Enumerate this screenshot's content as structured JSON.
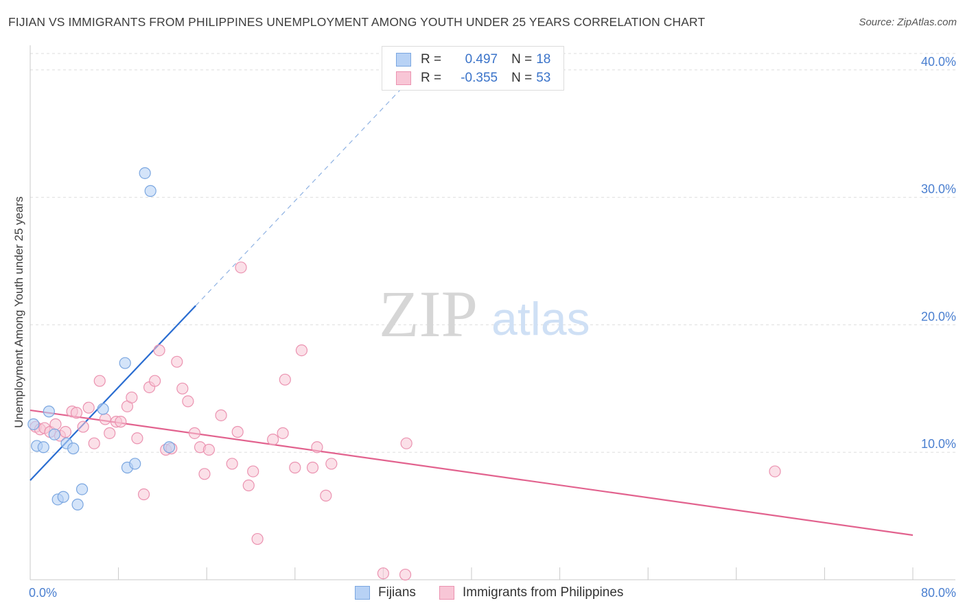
{
  "title": "FIJIAN VS IMMIGRANTS FROM PHILIPPINES UNEMPLOYMENT AMONG YOUTH UNDER 25 YEARS CORRELATION CHART",
  "source": "Source: ZipAtlas.com",
  "watermark": {
    "zip": "ZIP",
    "atlas": "atlas"
  },
  "legend": {
    "rows": [
      {
        "r_label": "R =",
        "r_value": "0.497",
        "n_label": "N =",
        "n_value": "18"
      },
      {
        "r_label": "R =",
        "r_value": "-0.355",
        "n_label": "N =",
        "n_value": "53"
      }
    ]
  },
  "colors": {
    "fijians_fill": "#b8d2f5",
    "fijians_stroke": "#7aa6e0",
    "fijians_line": "#2a6dd1",
    "philippines_fill": "#f8c6d6",
    "philippines_stroke": "#eb92b0",
    "philippines_line": "#e2628e",
    "grid": "#dddddd",
    "tick_text": "#4a7fd0"
  },
  "chart_data": {
    "type": "scatter",
    "title": "FIJIAN VS IMMIGRANTS FROM PHILIPPINES UNEMPLOYMENT AMONG YOUTH UNDER 25 YEARS CORRELATION CHART",
    "xlabel": "",
    "ylabel": "Unemployment Among Youth under 25 years",
    "xlim": [
      0,
      80
    ],
    "ylim": [
      0,
      41.5
    ],
    "x_tick_labels": [
      {
        "value": 0,
        "label": "0.0%"
      },
      {
        "value": 80,
        "label": "80.0%"
      }
    ],
    "x_minor_ticks": [
      8,
      16,
      24,
      32,
      40,
      48,
      56,
      64,
      72,
      80
    ],
    "y_ticks": [
      {
        "value": 10,
        "label": "10.0%"
      },
      {
        "value": 20,
        "label": "20.0%"
      },
      {
        "value": 30,
        "label": "30.0%"
      },
      {
        "value": 40,
        "label": "40.0%"
      }
    ],
    "series": [
      {
        "name": "Fijians",
        "points": [
          [
            0.3,
            12.2
          ],
          [
            0.6,
            10.5
          ],
          [
            1.2,
            10.4
          ],
          [
            1.7,
            13.2
          ],
          [
            2.2,
            11.4
          ],
          [
            2.5,
            6.3
          ],
          [
            3.0,
            6.5
          ],
          [
            3.3,
            10.7
          ],
          [
            3.9,
            10.3
          ],
          [
            4.3,
            5.9
          ],
          [
            4.7,
            7.1
          ],
          [
            6.6,
            13.4
          ],
          [
            8.6,
            17.0
          ],
          [
            8.8,
            8.8
          ],
          [
            9.5,
            9.1
          ],
          [
            10.4,
            31.9
          ],
          [
            10.9,
            30.5
          ],
          [
            12.6,
            10.4
          ]
        ],
        "trend": {
          "x0": 0,
          "y0": 7.8,
          "x1": 15.0,
          "y1": 21.5,
          "dash_to_x": 33.5,
          "dash_to_y": 38.4
        }
      },
      {
        "name": "Immigrants from Philippines",
        "points": [
          [
            0.5,
            12.0
          ],
          [
            0.9,
            11.8
          ],
          [
            1.3,
            11.9
          ],
          [
            1.8,
            11.6
          ],
          [
            2.3,
            12.2
          ],
          [
            2.7,
            11.3
          ],
          [
            3.2,
            11.6
          ],
          [
            3.8,
            13.2
          ],
          [
            4.2,
            13.1
          ],
          [
            4.8,
            12.0
          ],
          [
            5.3,
            13.5
          ],
          [
            5.8,
            10.7
          ],
          [
            6.3,
            15.6
          ],
          [
            6.8,
            12.6
          ],
          [
            7.2,
            11.5
          ],
          [
            7.8,
            12.4
          ],
          [
            8.2,
            12.4
          ],
          [
            8.8,
            13.6
          ],
          [
            9.2,
            14.3
          ],
          [
            9.7,
            11.1
          ],
          [
            10.3,
            6.7
          ],
          [
            10.8,
            15.1
          ],
          [
            11.3,
            15.6
          ],
          [
            11.7,
            18.0
          ],
          [
            12.3,
            10.2
          ],
          [
            12.8,
            10.3
          ],
          [
            13.3,
            17.1
          ],
          [
            13.8,
            15.0
          ],
          [
            14.3,
            14.0
          ],
          [
            14.9,
            11.5
          ],
          [
            15.4,
            10.4
          ],
          [
            15.8,
            8.3
          ],
          [
            16.2,
            10.2
          ],
          [
            17.3,
            12.9
          ],
          [
            18.3,
            9.1
          ],
          [
            18.8,
            11.6
          ],
          [
            19.1,
            24.5
          ],
          [
            19.8,
            7.4
          ],
          [
            20.2,
            8.5
          ],
          [
            20.6,
            3.2
          ],
          [
            22.0,
            11.0
          ],
          [
            22.9,
            11.5
          ],
          [
            23.1,
            15.7
          ],
          [
            24.0,
            8.8
          ],
          [
            24.6,
            18.0
          ],
          [
            25.6,
            8.8
          ],
          [
            26.0,
            10.4
          ],
          [
            26.8,
            6.6
          ],
          [
            27.3,
            9.1
          ],
          [
            32.0,
            0.5
          ],
          [
            34.0,
            0.4
          ],
          [
            34.1,
            10.7
          ],
          [
            67.5,
            8.5
          ]
        ],
        "trend": {
          "x0": 0,
          "y0": 13.3,
          "x1": 80,
          "y1": 3.5
        }
      }
    ]
  },
  "bottom_legend": {
    "fijians": "Fijians",
    "philippines": "Immigrants from Philippines"
  }
}
